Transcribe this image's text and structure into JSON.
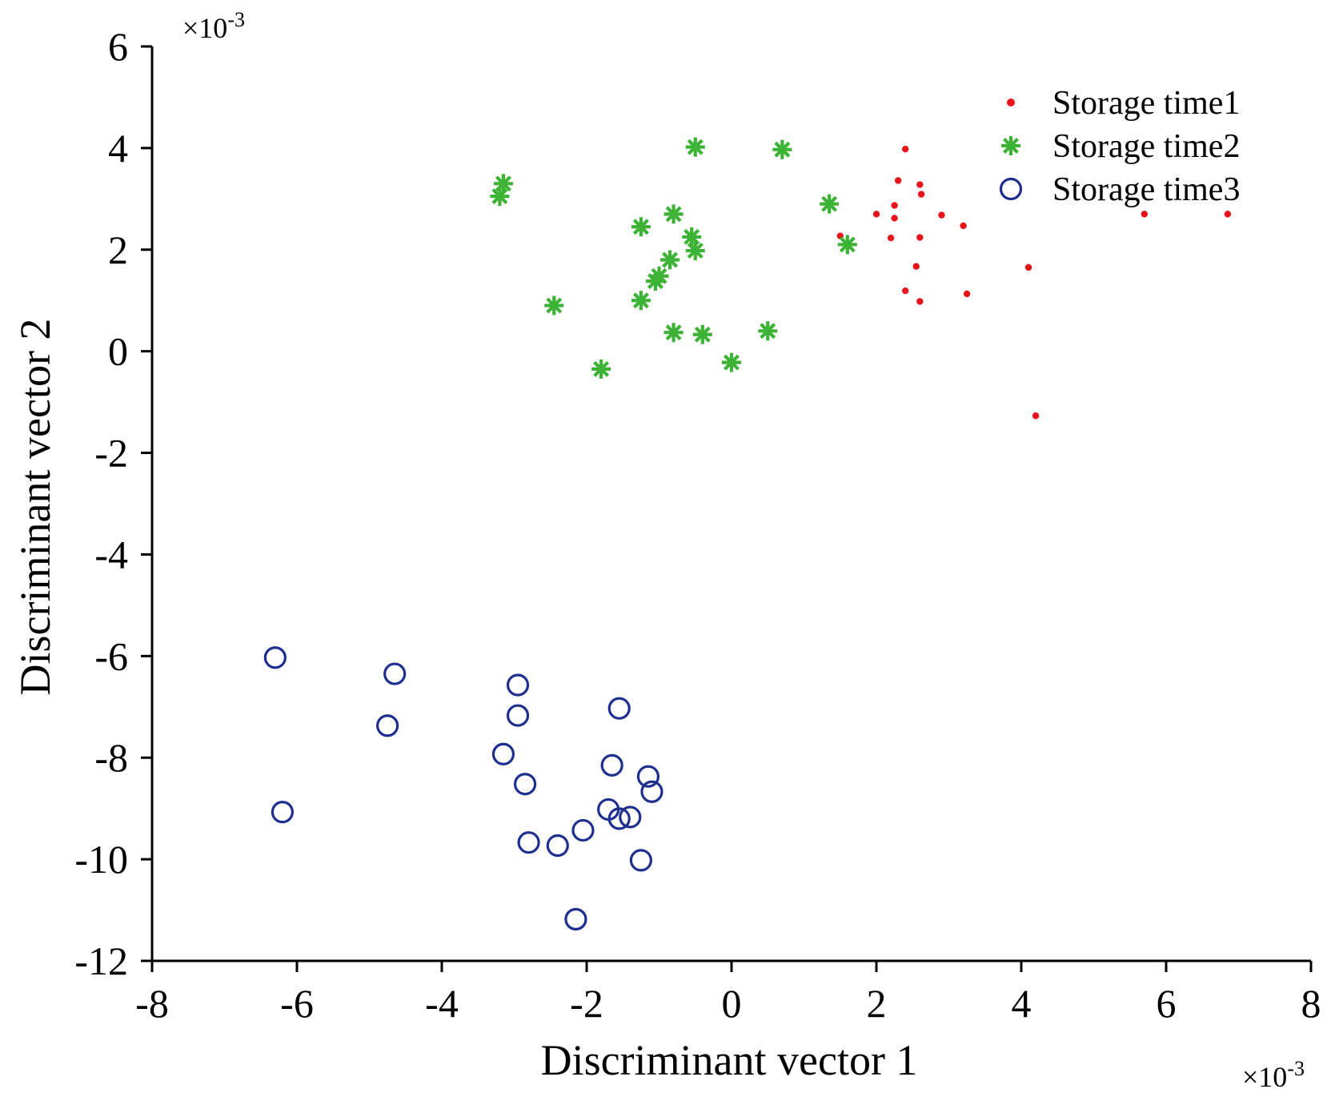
{
  "chart_data": {
    "type": "scatter",
    "xlabel": "Discriminant vector 1",
    "ylabel": "Discriminant vector 2",
    "x_exponent": "×10",
    "x_exponent_power": "-3",
    "y_exponent": "×10",
    "y_exponent_power": "-3",
    "xlim": [
      -8,
      8
    ],
    "ylim": [
      -12,
      6
    ],
    "xticks": [
      -8,
      -6,
      -4,
      -2,
      0,
      2,
      4,
      6,
      8
    ],
    "yticks": [
      -12,
      -10,
      -8,
      -6,
      -4,
      -2,
      0,
      2,
      4,
      6
    ],
    "xtick_labels": [
      "-8",
      "-6",
      "-4",
      "-2",
      "0",
      "2",
      "4",
      "6",
      "8"
    ],
    "ytick_labels": [
      "-12",
      "-10",
      "-8",
      "-6",
      "-4",
      "-2",
      "0",
      "2",
      "4",
      "6"
    ],
    "grid": false,
    "legend_position": "top-right",
    "series": [
      {
        "name": "Storage time1",
        "marker": "dot",
        "color": "#e8141c",
        "points": [
          [
            2.4,
            3.98
          ],
          [
            2.3,
            3.36
          ],
          [
            2.6,
            3.28
          ],
          [
            2.62,
            3.09
          ],
          [
            2.25,
            2.87
          ],
          [
            2.0,
            2.7
          ],
          [
            2.25,
            2.62
          ],
          [
            2.9,
            2.68
          ],
          [
            3.2,
            2.47
          ],
          [
            1.5,
            2.27
          ],
          [
            2.2,
            2.23
          ],
          [
            2.6,
            2.24
          ],
          [
            5.7,
            2.7
          ],
          [
            6.85,
            2.7
          ],
          [
            2.55,
            1.67
          ],
          [
            4.1,
            1.65
          ],
          [
            2.4,
            1.19
          ],
          [
            3.25,
            1.13
          ],
          [
            2.6,
            0.98
          ],
          [
            4.2,
            -1.27
          ]
        ]
      },
      {
        "name": "Storage time2",
        "marker": "star",
        "color": "#3cb334",
        "points": [
          [
            -3.15,
            3.3
          ],
          [
            -3.2,
            3.05
          ],
          [
            -0.5,
            4.02
          ],
          [
            0.7,
            3.97
          ],
          [
            1.35,
            2.9
          ],
          [
            -0.8,
            2.7
          ],
          [
            -1.25,
            2.45
          ],
          [
            -0.55,
            2.25
          ],
          [
            -0.5,
            1.98
          ],
          [
            1.6,
            2.1
          ],
          [
            -0.85,
            1.8
          ],
          [
            -1.0,
            1.48
          ],
          [
            -1.05,
            1.38
          ],
          [
            -1.25,
            1.0
          ],
          [
            -2.45,
            0.9
          ],
          [
            -0.8,
            0.37
          ],
          [
            -0.4,
            0.33
          ],
          [
            0.5,
            0.4
          ],
          [
            0.0,
            -0.22
          ],
          [
            -1.8,
            -0.35
          ]
        ]
      },
      {
        "name": "Storage time3",
        "marker": "circle",
        "color": "#1e2f8f",
        "points": [
          [
            -6.3,
            -6.03
          ],
          [
            -4.65,
            -6.35
          ],
          [
            -4.75,
            -7.37
          ],
          [
            -6.2,
            -9.07
          ],
          [
            -2.95,
            -6.57
          ],
          [
            -2.95,
            -7.17
          ],
          [
            -1.55,
            -7.03
          ],
          [
            -3.15,
            -7.93
          ],
          [
            -2.85,
            -8.52
          ],
          [
            -1.65,
            -8.15
          ],
          [
            -1.15,
            -8.37
          ],
          [
            -1.1,
            -8.67
          ],
          [
            -1.7,
            -9.02
          ],
          [
            -1.55,
            -9.2
          ],
          [
            -1.4,
            -9.17
          ],
          [
            -2.05,
            -9.43
          ],
          [
            -2.8,
            -9.67
          ],
          [
            -2.4,
            -9.73
          ],
          [
            -1.25,
            -10.02
          ],
          [
            -2.15,
            -11.18
          ]
        ]
      }
    ]
  }
}
